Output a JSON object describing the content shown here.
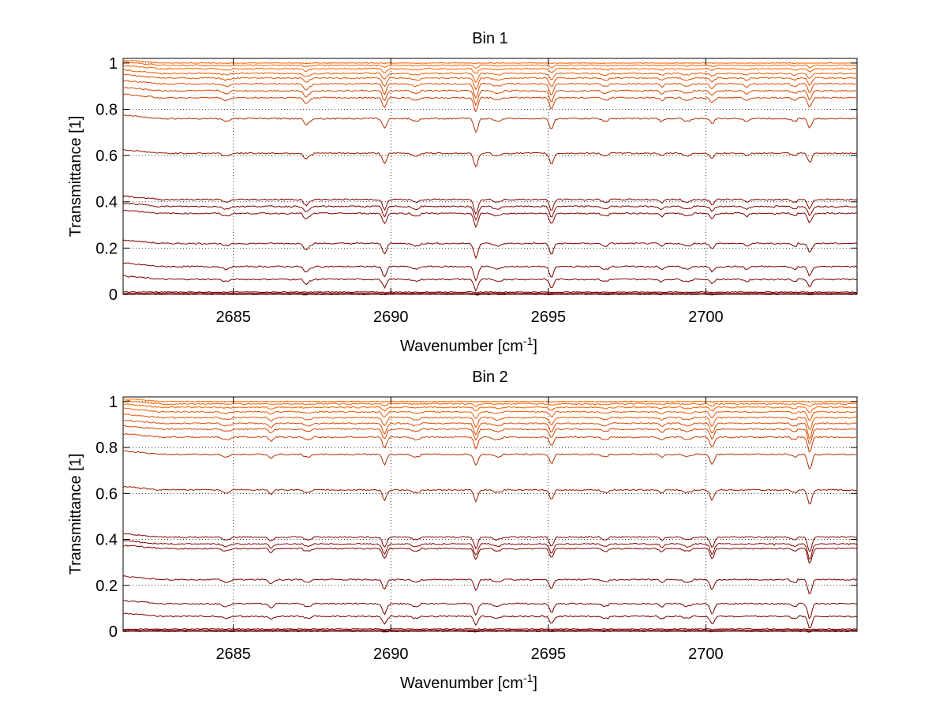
{
  "chart_data": [
    {
      "type": "line",
      "title": "Bin 1",
      "xlabel": "Wavenumber [cm",
      "xlabel_sup": "-1",
      "xlabel_end": "]",
      "ylabel": "Transmittance [1]",
      "xlim": [
        2681.5,
        2704.8
      ],
      "ylim": [
        0,
        1.02
      ],
      "xticks": [
        2685,
        2690,
        2695,
        2700
      ],
      "xtick_labels": [
        "2685",
        "2690",
        "2695",
        "2700"
      ],
      "yticks": [
        0,
        0.2,
        0.4,
        0.6,
        0.8,
        1
      ],
      "ytick_labels": [
        "0",
        "0.2",
        "0.4",
        "0.6",
        "0.8",
        "1"
      ],
      "grid": true,
      "series_baselines": [
        1.0,
        0.99,
        0.975,
        0.955,
        0.935,
        0.91,
        0.88,
        0.85,
        0.76,
        0.61,
        0.41,
        0.38,
        0.35,
        0.22,
        0.12,
        0.065,
        0.01,
        0.005,
        0.0
      ],
      "absorption_lines": [
        {
          "x": 2689.8,
          "depth": 1.0
        },
        {
          "x": 2692.7,
          "depth": 1.4
        },
        {
          "x": 2695.1,
          "depth": 1.1
        },
        {
          "x": 2700.2,
          "depth": 0.5
        },
        {
          "x": 2703.3,
          "depth": 0.9
        },
        {
          "x": 2687.3,
          "depth": 0.35
        },
        {
          "x": 2698.6,
          "depth": 0.3
        },
        {
          "x": 2701.3,
          "depth": 0.3
        }
      ]
    },
    {
      "type": "line",
      "title": "Bin 2",
      "xlabel": "Wavenumber [cm",
      "xlabel_sup": "-1",
      "xlabel_end": "]",
      "ylabel": "Transmittance [1]",
      "xlim": [
        2681.5,
        2704.8
      ],
      "ylim": [
        0,
        1.02
      ],
      "xticks": [
        2685,
        2690,
        2695,
        2700
      ],
      "xtick_labels": [
        "2685",
        "2690",
        "2695",
        "2700"
      ],
      "yticks": [
        0,
        0.2,
        0.4,
        0.6,
        0.8,
        1
      ],
      "ytick_labels": [
        "0",
        "0.2",
        "0.4",
        "0.6",
        "0.8",
        "1"
      ],
      "grid": true,
      "series_baselines": [
        1.0,
        0.99,
        0.975,
        0.955,
        0.93,
        0.905,
        0.88,
        0.845,
        0.77,
        0.615,
        0.41,
        0.38,
        0.36,
        0.225,
        0.12,
        0.065,
        0.01,
        0.005,
        0.0
      ],
      "absorption_lines": [
        {
          "x": 2689.8,
          "depth": 1.0
        },
        {
          "x": 2692.7,
          "depth": 1.1
        },
        {
          "x": 2695.1,
          "depth": 0.9
        },
        {
          "x": 2700.2,
          "depth": 1.0
        },
        {
          "x": 2703.3,
          "depth": 1.5
        },
        {
          "x": 2686.2,
          "depth": 0.4
        },
        {
          "x": 2698.6,
          "depth": 0.3
        }
      ]
    }
  ]
}
